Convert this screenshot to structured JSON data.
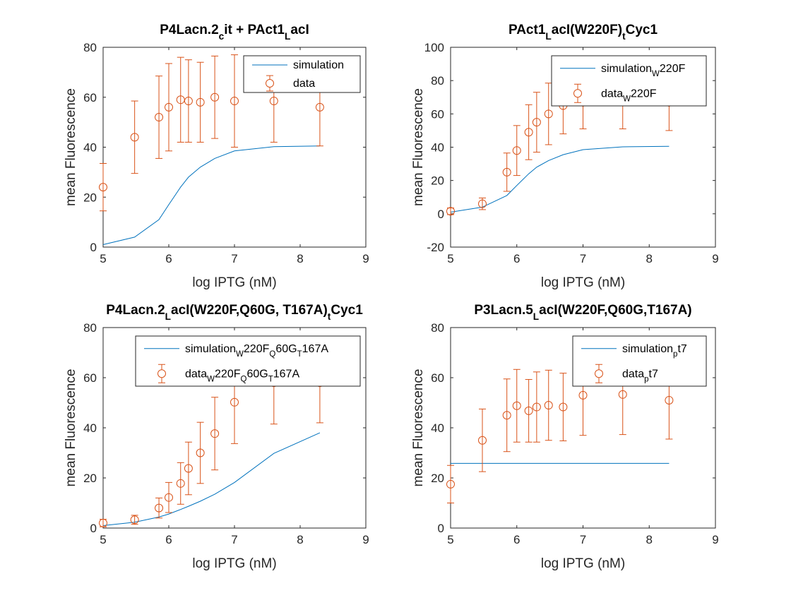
{
  "colors": {
    "simulation": "#0072BD",
    "data": "#D95319",
    "axis": "#262626"
  },
  "chart_data": [
    {
      "type": "line",
      "title": "P4Lacn.2",
      "title_parts": [
        {
          "t": "P4Lacn.2"
        },
        {
          "t": "c",
          "sub": true
        },
        {
          "t": "it + PAct1"
        },
        {
          "t": "L",
          "sub": true
        },
        {
          "t": "acI"
        }
      ],
      "xlabel": "log IPTG (nM)",
      "ylabel": "mean Fluorescence",
      "xlim": [
        5,
        9
      ],
      "ylim": [
        0,
        80
      ],
      "xticks": [
        5,
        6,
        7,
        8,
        9
      ],
      "yticks": [
        0,
        20,
        40,
        60,
        80
      ],
      "legend_position": "top-right",
      "series": [
        {
          "kind": "line",
          "name": "simulation",
          "name_parts": [
            {
              "t": "simulation"
            }
          ],
          "x": [
            5,
            5.48,
            5.85,
            6.0,
            6.18,
            6.3,
            6.48,
            6.7,
            7.0,
            7.6,
            8.3
          ],
          "y": [
            1,
            4,
            11,
            17,
            24,
            28,
            32,
            35.5,
            38.5,
            40.2,
            40.5
          ]
        },
        {
          "kind": "errorbar",
          "name": "data",
          "name_parts": [
            {
              "t": "data"
            }
          ],
          "x": [
            5,
            5.48,
            5.85,
            6.0,
            6.18,
            6.3,
            6.48,
            6.7,
            7.0,
            7.6,
            8.3
          ],
          "y": [
            24,
            44,
            52,
            56,
            59,
            58.5,
            58,
            60,
            58.5,
            58.5,
            56
          ],
          "err": [
            9.5,
            14.5,
            16.5,
            17.5,
            17,
            16.5,
            16,
            16.5,
            18.5,
            16.5,
            15.5
          ]
        }
      ]
    },
    {
      "type": "line",
      "title": "PAct1",
      "title_parts": [
        {
          "t": "PAct1"
        },
        {
          "t": "L",
          "sub": true
        },
        {
          "t": "acI(W220F)"
        },
        {
          "t": "t",
          "sub": true
        },
        {
          "t": "Cyc1"
        }
      ],
      "xlabel": "log IPTG (nM)",
      "ylabel": "mean Fluorescence",
      "xlim": [
        5,
        9
      ],
      "ylim": [
        -20,
        100
      ],
      "xticks": [
        5,
        6,
        7,
        8,
        9
      ],
      "yticks": [
        -20,
        0,
        20,
        40,
        60,
        80,
        100
      ],
      "legend_position": "top-right",
      "series": [
        {
          "kind": "line",
          "name": "simulation",
          "name_parts": [
            {
              "t": "simulation"
            },
            {
              "t": "W",
              "sub": true
            },
            {
              "t": "220F"
            }
          ],
          "x": [
            5,
            5.48,
            5.85,
            6.0,
            6.18,
            6.3,
            6.48,
            6.7,
            7.0,
            7.6,
            8.3
          ],
          "y": [
            1,
            4,
            11,
            17,
            24,
            28,
            32,
            35.5,
            38.5,
            40.2,
            40.5
          ]
        },
        {
          "kind": "errorbar",
          "name": "data",
          "name_parts": [
            {
              "t": "data"
            },
            {
              "t": "W",
              "sub": true
            },
            {
              "t": "220F"
            }
          ],
          "x": [
            5,
            5.48,
            5.85,
            6.0,
            6.18,
            6.3,
            6.48,
            6.7,
            7.0,
            7.6,
            8.3
          ],
          "y": [
            1.5,
            6,
            25,
            38,
            49,
            55,
            60,
            65,
            67,
            68,
            67
          ],
          "err": [
            2,
            3.5,
            11.5,
            15,
            16.5,
            18,
            18.5,
            17,
            16,
            17,
            17
          ]
        }
      ]
    },
    {
      "type": "line",
      "title": "P4Lacn.2",
      "title_parts": [
        {
          "t": "P4Lacn.2"
        },
        {
          "t": "L",
          "sub": true
        },
        {
          "t": "acI(W220F,Q60G, T167A)"
        },
        {
          "t": "t",
          "sub": true
        },
        {
          "t": "Cyc1"
        }
      ],
      "xlabel": "log IPTG (nM)",
      "ylabel": "mean Fluorescence",
      "xlim": [
        5,
        9
      ],
      "ylim": [
        0,
        80
      ],
      "xticks": [
        5,
        6,
        7,
        8,
        9
      ],
      "yticks": [
        0,
        20,
        40,
        60,
        80
      ],
      "legend_position": "top-right",
      "series": [
        {
          "kind": "line",
          "name": "simulation",
          "name_parts": [
            {
              "t": "simulation"
            },
            {
              "t": "W",
              "sub": true
            },
            {
              "t": "220F"
            },
            {
              "t": "Q",
              "sub": true
            },
            {
              "t": "60G"
            },
            {
              "t": "T",
              "sub": true
            },
            {
              "t": "167A"
            }
          ],
          "x": [
            5,
            5.48,
            5.85,
            6.0,
            6.18,
            6.3,
            6.48,
            6.7,
            7.0,
            7.6,
            8.3
          ],
          "y": [
            1,
            2.3,
            4.4,
            5.6,
            7.4,
            8.7,
            10.7,
            13.5,
            18.2,
            29.8,
            38
          ]
        },
        {
          "kind": "errorbar",
          "name": "data",
          "name_parts": [
            {
              "t": "data"
            },
            {
              "t": "W",
              "sub": true
            },
            {
              "t": "220F"
            },
            {
              "t": "Q",
              "sub": true
            },
            {
              "t": "60G"
            },
            {
              "t": "T",
              "sub": true
            },
            {
              "t": "167A"
            }
          ],
          "x": [
            5,
            5.48,
            5.85,
            6.0,
            6.18,
            6.3,
            6.48,
            6.7,
            7.0,
            7.6,
            8.3
          ],
          "y": [
            2,
            3.3,
            8,
            12.2,
            17.8,
            23.8,
            30,
            37.7,
            50.2,
            58,
            58
          ],
          "err": [
            1.5,
            1.8,
            4,
            6,
            8.3,
            10.5,
            12.2,
            14.5,
            16.5,
            16.5,
            16
          ]
        }
      ]
    },
    {
      "type": "line",
      "title": "P3Lacn.5",
      "title_parts": [
        {
          "t": "P3Lacn.5"
        },
        {
          "t": "L",
          "sub": true
        },
        {
          "t": "acI(W220F,Q60G,T167A)"
        }
      ],
      "xlabel": "log IPTG (nM)",
      "ylabel": "mean Fluorescence",
      "xlim": [
        5,
        9
      ],
      "ylim": [
        0,
        80
      ],
      "xticks": [
        5,
        6,
        7,
        8,
        9
      ],
      "yticks": [
        0,
        20,
        40,
        60,
        80
      ],
      "legend_position": "top-right",
      "series": [
        {
          "kind": "line",
          "name": "simulation",
          "name_parts": [
            {
              "t": "simulation"
            },
            {
              "t": "p",
              "sub": true
            },
            {
              "t": "t7"
            }
          ],
          "x": [
            5,
            8.3
          ],
          "y": [
            25.8,
            25.8
          ]
        },
        {
          "kind": "errorbar",
          "name": "data",
          "name_parts": [
            {
              "t": "data"
            },
            {
              "t": "p",
              "sub": true
            },
            {
              "t": "t7"
            }
          ],
          "x": [
            5,
            5.48,
            5.85,
            6.0,
            6.18,
            6.3,
            6.48,
            6.7,
            7.0,
            7.6,
            8.3
          ],
          "y": [
            17.5,
            35,
            45,
            48.8,
            46.8,
            48.3,
            49,
            48.3,
            53,
            53.3,
            51
          ],
          "err": [
            7.5,
            12.5,
            14.5,
            14.5,
            12.5,
            14,
            14,
            13.5,
            16,
            16,
            15.5
          ]
        }
      ]
    }
  ]
}
